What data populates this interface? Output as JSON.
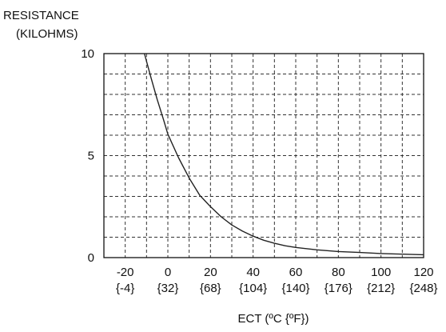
{
  "chart_data": {
    "type": "line",
    "title": "",
    "ylabel_line1": "RESISTANCE",
    "ylabel_line2": "(KILOHMS)",
    "xlabel": "ECT (ºC {ºF})",
    "xlim": [
      -30,
      120
    ],
    "ylim": [
      0,
      10
    ],
    "grid": true,
    "x_ticks": [
      {
        "c": "-20",
        "f": "{-4}"
      },
      {
        "c": "0",
        "f": "{32}"
      },
      {
        "c": "20",
        "f": "{68}"
      },
      {
        "c": "40",
        "f": "{104}"
      },
      {
        "c": "60",
        "f": "{140}"
      },
      {
        "c": "80",
        "f": "{176}"
      },
      {
        "c": "100",
        "f": "{212}"
      },
      {
        "c": "120",
        "f": "{248}"
      }
    ],
    "y_ticks": [
      "0",
      "5",
      "10"
    ],
    "series": [
      {
        "x": [
          -11,
          -8,
          -5,
          -2,
          0,
          5,
          10,
          15,
          20,
          25,
          30,
          35,
          40,
          45,
          50,
          55,
          60,
          70,
          80,
          90,
          100,
          110,
          120
        ],
        "values": [
          10,
          8.85,
          7.75,
          6.75,
          6.05,
          4.9,
          3.9,
          3.05,
          2.5,
          2.0,
          1.6,
          1.3,
          1.05,
          0.85,
          0.7,
          0.58,
          0.5,
          0.38,
          0.3,
          0.25,
          0.2,
          0.17,
          0.14
        ]
      }
    ],
    "colors": {
      "line": "#222222",
      "grid": "#333333",
      "axis": "#111111"
    }
  }
}
